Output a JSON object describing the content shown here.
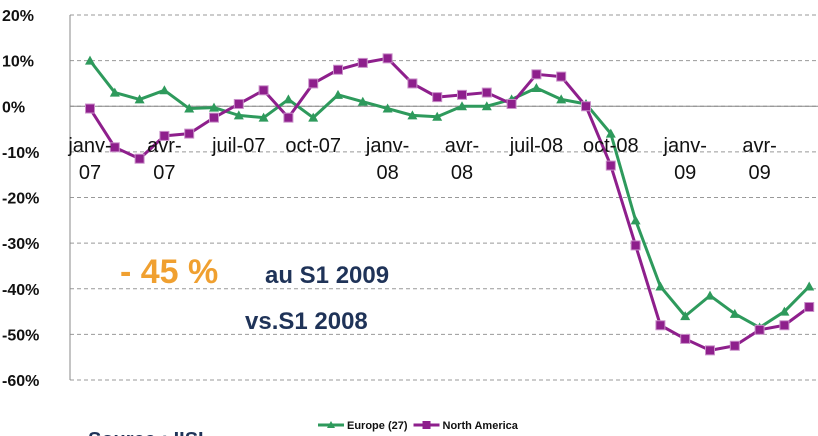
{
  "chart_data": {
    "type": "line",
    "categories": [
      "janv-07",
      null,
      null,
      "avr-07",
      null,
      null,
      "juil-07",
      null,
      null,
      "oct-07",
      null,
      null,
      "janv-08",
      null,
      null,
      "avr-08",
      null,
      null,
      "juil-08",
      null,
      null,
      "oct-08",
      null,
      null,
      "janv-09",
      null,
      null,
      "avr-09",
      null,
      null
    ],
    "series": [
      {
        "name": "Europe (27)",
        "color": "#2e9a5c",
        "marker": "triangle",
        "values": [
          10,
          3,
          1.5,
          3.5,
          -0.5,
          -0.3,
          -2,
          -2.5,
          1.5,
          -2.5,
          2.5,
          1,
          -0.5,
          -2,
          -2.3,
          0,
          0,
          1.5,
          4,
          1.5,
          0.5,
          -6,
          -25,
          -39.5,
          -46,
          -41.5,
          -45.5,
          -48.5,
          -45,
          -39.5
        ]
      },
      {
        "name": "North America",
        "color": "#8e1f8c",
        "marker": "square",
        "values": [
          -0.5,
          -9,
          -11.5,
          -6.5,
          -6,
          -2.5,
          0.5,
          3.5,
          -2.5,
          5,
          8,
          9.5,
          10.5,
          5,
          2,
          2.5,
          3,
          0.5,
          7,
          6.5,
          0,
          -13,
          -30.5,
          -48,
          -51,
          -53.5,
          -52.5,
          -49,
          -48,
          -44
        ]
      }
    ],
    "ylim": [
      -60,
      20
    ],
    "yticks": [
      {
        "value": -60,
        "label": "-60%"
      },
      {
        "value": -50,
        "label": "-50%"
      },
      {
        "value": -40,
        "label": "-40%"
      },
      {
        "value": -30,
        "label": "-30%"
      },
      {
        "value": -20,
        "label": "-20%"
      },
      {
        "value": -10,
        "label": "-10%"
      },
      {
        "value": 0,
        "label": "0%"
      },
      {
        "value": 10,
        "label": "10%"
      },
      {
        "value": 20,
        "label": "20%"
      }
    ],
    "grid": true,
    "legend": "bottom",
    "annotations": [
      "- 45 %",
      "au S1 2009",
      "vs.S1 2008"
    ],
    "source": "Source : IISI"
  }
}
